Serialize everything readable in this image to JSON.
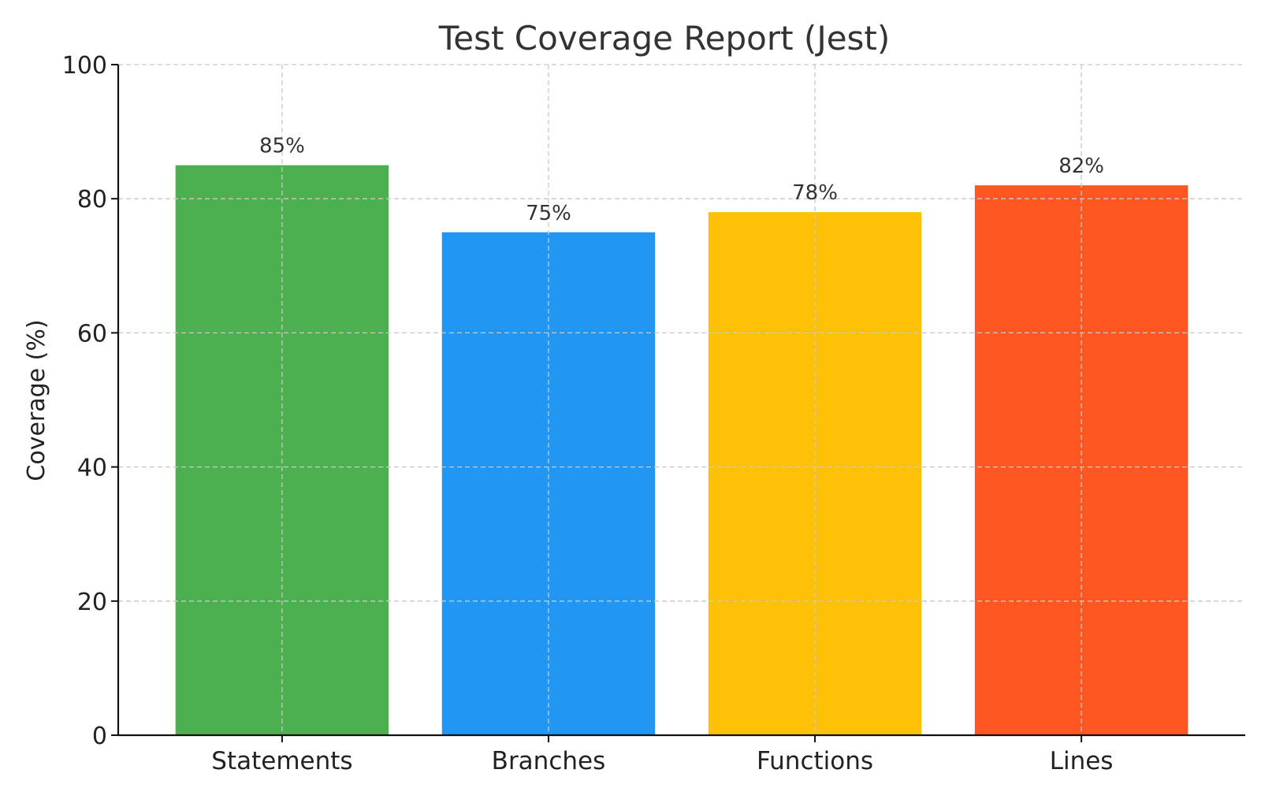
{
  "chart_data": {
    "type": "bar",
    "title": "Test Coverage Report (Jest)",
    "xlabel": "",
    "ylabel": "Coverage (%)",
    "categories": [
      "Statements",
      "Branches",
      "Functions",
      "Lines"
    ],
    "values": [
      85,
      75,
      78,
      82
    ],
    "value_labels": [
      "85%",
      "75%",
      "78%",
      "82%"
    ],
    "colors": [
      "#4caf50",
      "#2196f3",
      "#ffc107",
      "#ff5722"
    ],
    "ylim": [
      0,
      100
    ],
    "yticks": [
      0,
      20,
      40,
      60,
      80,
      100
    ],
    "ytick_labels": [
      "0",
      "20",
      "40",
      "60",
      "80",
      "100"
    ],
    "grid": true,
    "legend": "none"
  }
}
